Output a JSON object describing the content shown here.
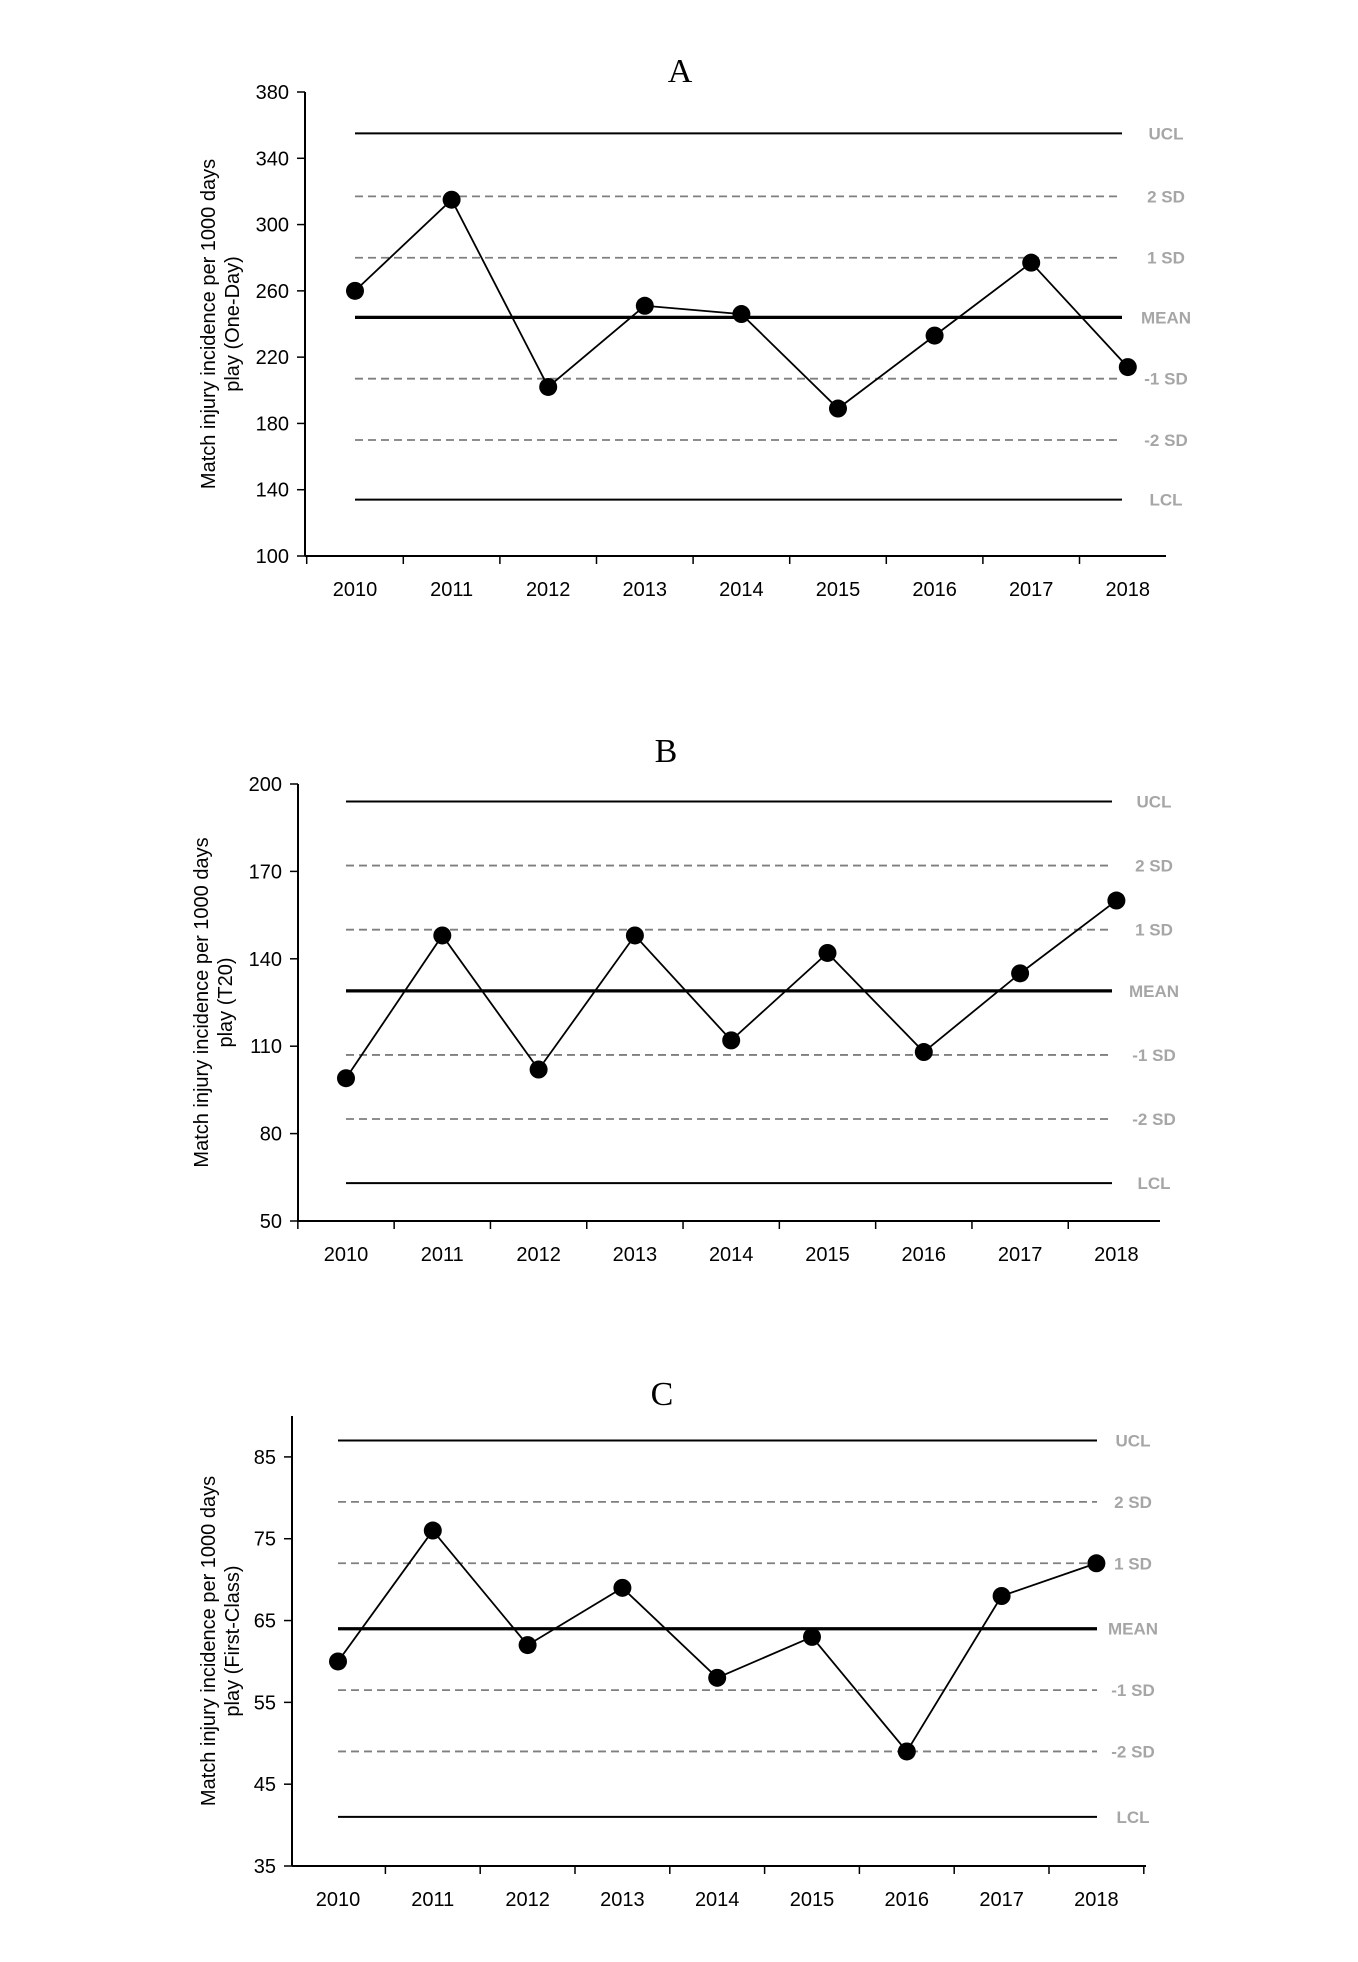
{
  "chart_data": [
    {
      "type": "line",
      "title": "A",
      "ylabel_lines": [
        "Match injury incidence per 1000 days",
        "play (One-Day)"
      ],
      "categories": [
        "2010",
        "2011",
        "2012",
        "2013",
        "2014",
        "2015",
        "2016",
        "2017",
        "2018"
      ],
      "values": [
        260,
        315,
        202,
        251,
        246,
        189,
        233,
        277,
        214
      ],
      "ylim": [
        100,
        380
      ],
      "yticks": [
        "100",
        "140",
        "180",
        "220",
        "260",
        "300",
        "340",
        "380"
      ],
      "reference_lines": [
        {
          "label": "UCL",
          "value": 355,
          "style": "solid"
        },
        {
          "label": "2 SD",
          "value": 317,
          "style": "dashed"
        },
        {
          "label": "1 SD",
          "value": 280,
          "style": "dashed"
        },
        {
          "label": "MEAN",
          "value": 244,
          "style": "mean"
        },
        {
          "label": "-1 SD",
          "value": 207,
          "style": "dashed"
        },
        {
          "label": "-2 SD",
          "value": 170,
          "style": "dashed"
        },
        {
          "label": "LCL",
          "value": 134,
          "style": "solid"
        }
      ],
      "grid": false
    },
    {
      "type": "line",
      "title": "B",
      "ylabel_lines": [
        "Match injury incidence per 1000 days",
        "play (T20)"
      ],
      "categories": [
        "2010",
        "2011",
        "2012",
        "2013",
        "2014",
        "2015",
        "2016",
        "2017",
        "2018"
      ],
      "values": [
        99,
        148,
        102,
        148,
        112,
        142,
        108,
        135,
        160
      ],
      "ylim": [
        50,
        200
      ],
      "yticks": [
        "50",
        "80",
        "110",
        "140",
        "170",
        "200"
      ],
      "reference_lines": [
        {
          "label": "UCL",
          "value": 194,
          "style": "solid"
        },
        {
          "label": "2 SD",
          "value": 172,
          "style": "dashed"
        },
        {
          "label": "1 SD",
          "value": 150,
          "style": "dashed"
        },
        {
          "label": "MEAN",
          "value": 129,
          "style": "mean"
        },
        {
          "label": "-1 SD",
          "value": 107,
          "style": "dashed"
        },
        {
          "label": "-2 SD",
          "value": 85,
          "style": "dashed"
        },
        {
          "label": "LCL",
          "value": 63,
          "style": "solid"
        }
      ],
      "grid": false
    },
    {
      "type": "line",
      "title": "C",
      "ylabel_lines": [
        "Match injury incidence per 1000 days",
        "play (First-Class)"
      ],
      "categories": [
        "2010",
        "2011",
        "2012",
        "2013",
        "2014",
        "2015",
        "2016",
        "2017",
        "2018"
      ],
      "values": [
        60,
        76,
        62,
        69,
        58,
        63,
        49,
        68,
        72
      ],
      "ylim": [
        35,
        90
      ],
      "yticks": [
        "35",
        "45",
        "55",
        "65",
        "75",
        "85"
      ],
      "reference_lines": [
        {
          "label": "UCL",
          "value": 87,
          "style": "solid"
        },
        {
          "label": "2 SD",
          "value": 79.5,
          "style": "dashed"
        },
        {
          "label": "1 SD",
          "value": 72,
          "style": "dashed"
        },
        {
          "label": "MEAN",
          "value": 64,
          "style": "mean"
        },
        {
          "label": "-1 SD",
          "value": 56.5,
          "style": "dashed"
        },
        {
          "label": "-2 SD",
          "value": 49,
          "style": "dashed"
        },
        {
          "label": "LCL",
          "value": 41,
          "style": "solid"
        }
      ],
      "grid": false
    }
  ]
}
